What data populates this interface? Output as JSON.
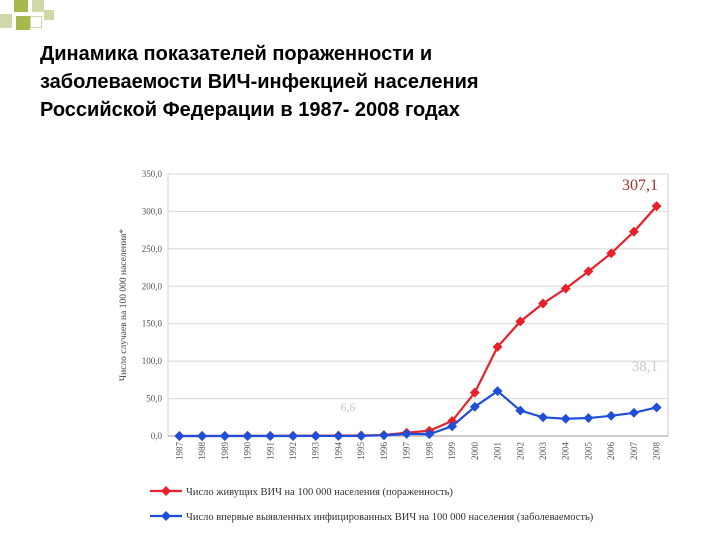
{
  "title_lines": [
    "Динамика показателей пораженности и",
    "заболеваемости  ВИЧ-инфекцией населения",
    "Российской Федерации в 1987- 2008 годах"
  ],
  "colors": {
    "series_prevalence": "#e8202a",
    "series_incidence": "#1f4fd6",
    "deco_olive": "#a8b84a",
    "deco_light": "#cfd8a8",
    "grid": "#d8d8d8",
    "axis_text": "#555555",
    "annotation_red": "#a0302c",
    "annotation_faded": "#c8c8c8"
  },
  "chart_data": {
    "type": "line",
    "ylabel": "Число случаев на 100 000 населения*",
    "ylim": [
      0,
      350
    ],
    "y_ticks": [
      "0,0",
      "50,0",
      "100,0",
      "150,0",
      "200,0",
      "250,0",
      "300,0",
      "350,0"
    ],
    "grid": true,
    "legend_position": "bottom",
    "categories": [
      "1987",
      "1988",
      "1989",
      "1990",
      "1991",
      "1992",
      "1993",
      "1994",
      "1995",
      "1996",
      "1997",
      "1998",
      "1999",
      "2000",
      "2001",
      "2002",
      "2003",
      "2004",
      "2005",
      "2006",
      "2007",
      "2008"
    ],
    "series": [
      {
        "name": "Число живущих ВИЧ на 100 000 населения (пораженность)",
        "values": [
          0,
          0,
          0.1,
          0.2,
          0.2,
          0.3,
          0.4,
          0.5,
          0.7,
          1.3,
          4.4,
          7.0,
          20.0,
          58.0,
          119.0,
          153.0,
          177.0,
          197.0,
          220.0,
          244.0,
          273.0,
          307.1
        ]
      },
      {
        "name": "Число впервые выявленных инфицированных ВИЧ на 100 000 населения (заболеваемость)",
        "values": [
          0,
          0,
          0,
          0,
          0,
          0,
          0.1,
          0.1,
          0.1,
          1.0,
          2.8,
          2.5,
          13.0,
          39.0,
          60.0,
          34.0,
          25.0,
          23.0,
          24.0,
          27.0,
          31.0,
          38.1
        ]
      }
    ],
    "annotations": [
      {
        "text": "307,1",
        "style": "red"
      },
      {
        "text": "38,1",
        "style": "faded"
      },
      {
        "text": "6,6",
        "style": "faded"
      }
    ]
  }
}
